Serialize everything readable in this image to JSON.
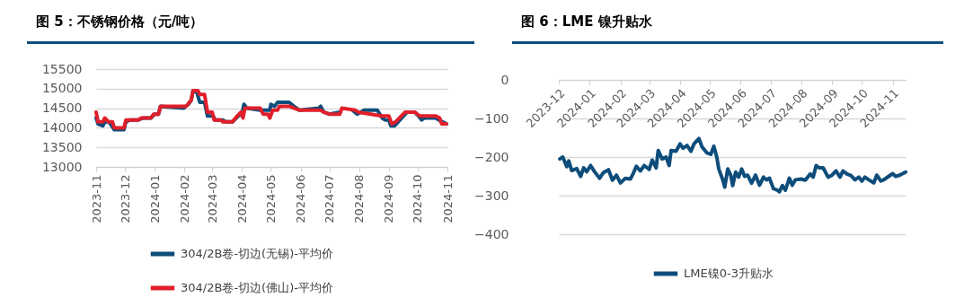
{
  "chart_data": [
    {
      "type": "line",
      "title": "图 5：不锈钢价格（元/吨）",
      "xlim": [
        "2023-11-01",
        "2024-11-01"
      ],
      "xticks": [
        "2023-11",
        "2023-12",
        "2024-01",
        "2024-02",
        "2024-03",
        "2024-04",
        "2024-05",
        "2024-06",
        "2024-07",
        "2024-08",
        "2024-09",
        "2024-10",
        "2024-11"
      ],
      "ylim": [
        13000,
        15500
      ],
      "yticks": [
        13000,
        13500,
        14000,
        14500,
        15000,
        15500
      ],
      "grid": "y",
      "legend": "bottom",
      "line_style": "solid",
      "marker": "none",
      "series": [
        {
          "name": "304/2B卷-切边(无锡)-平均价",
          "color": "#0e4d7b",
          "x": [
            "2023-11-01",
            "2023-11-03",
            "2023-11-08",
            "2023-11-10",
            "2023-11-14",
            "2023-11-16",
            "2023-11-20",
            "2023-11-30",
            "2023-12-02",
            "2023-12-06",
            "2023-12-15",
            "2023-12-20",
            "2023-12-28",
            "2024-01-01",
            "2024-01-05",
            "2024-01-07",
            "2024-01-31",
            "2024-02-05",
            "2024-02-08",
            "2024-02-10",
            "2024-02-14",
            "2024-02-17",
            "2024-02-22",
            "2024-02-25",
            "2024-03-02",
            "2024-03-04",
            "2024-03-12",
            "2024-03-15",
            "2024-03-22",
            "2024-03-28",
            "2024-04-01",
            "2024-04-03",
            "2024-04-06",
            "2024-04-20",
            "2024-04-30",
            "2024-05-01",
            "2024-05-05",
            "2024-05-08",
            "2024-05-20",
            "2024-05-25",
            "2024-05-31",
            "2024-06-20",
            "2024-06-22",
            "2024-06-25",
            "2024-07-01",
            "2024-07-12",
            "2024-07-15",
            "2024-07-25",
            "2024-07-30",
            "2024-08-03",
            "2024-08-06",
            "2024-08-20",
            "2024-08-25",
            "2024-08-28",
            "2024-09-01",
            "2024-09-03",
            "2024-09-07",
            "2024-09-20",
            "2024-09-28",
            "2024-10-02",
            "2024-10-05",
            "2024-10-08",
            "2024-10-20",
            "2024-10-23",
            "2024-10-27",
            "2024-10-31"
          ],
          "values": [
            14250,
            14100,
            14050,
            14150,
            14150,
            14100,
            13950,
            13950,
            14150,
            14200,
            14200,
            14250,
            14250,
            14350,
            14350,
            14550,
            14500,
            14600,
            14700,
            14950,
            14900,
            14650,
            14650,
            14300,
            14300,
            14200,
            14200,
            14150,
            14150,
            14300,
            14350,
            14600,
            14500,
            14450,
            14450,
            14600,
            14550,
            14650,
            14650,
            14550,
            14450,
            14500,
            14550,
            14400,
            14350,
            14400,
            null,
            14450,
            14350,
            14400,
            14450,
            14450,
            14250,
            14200,
            14200,
            14050,
            14050,
            14400,
            14400,
            14300,
            14200,
            14250,
            14250,
            14200,
            14150,
            14100
          ]
        },
        {
          "name": "304/2B卷-切边(佛山)-平均价",
          "color": "#e01f2a",
          "x": [
            "2023-11-01",
            "2023-11-03",
            "2023-11-08",
            "2023-11-10",
            "2023-11-14",
            "2023-11-18",
            "2023-11-20",
            "2023-11-30",
            "2023-12-02",
            "2023-12-15",
            "2023-12-18",
            "2023-12-28",
            "2023-12-31",
            "2024-01-05",
            "2024-01-07",
            "2024-02-03",
            "2024-02-06",
            "2024-02-08",
            "2024-02-10",
            "2024-02-15",
            "2024-02-17",
            "2024-02-22",
            "2024-02-25",
            "2024-03-01",
            "2024-03-03",
            "2024-03-10",
            "2024-03-12",
            "2024-03-22",
            "2024-03-27",
            "2024-03-31",
            "2024-04-02",
            "2024-04-04",
            "2024-04-20",
            "2024-04-23",
            "2024-04-28",
            "2024-04-30",
            "2024-05-03",
            "2024-05-08",
            "2024-05-10",
            "2024-05-20",
            "2024-05-31",
            "2024-06-22",
            "2024-06-25",
            "2024-07-01",
            "2024-07-12",
            "2024-07-14",
            "2024-07-28",
            "2024-07-31",
            "2024-08-25",
            "2024-09-01",
            "2024-09-04",
            "2024-09-08",
            "2024-09-18",
            "2024-09-28",
            "2024-10-03",
            "2024-10-20",
            "2024-10-24",
            "2024-10-26",
            "2024-10-31"
          ],
          "values": [
            14400,
            14150,
            14150,
            14250,
            14150,
            14150,
            14000,
            14000,
            14200,
            14200,
            14250,
            14250,
            14350,
            14350,
            14550,
            14550,
            14650,
            14700,
            14950,
            14950,
            14850,
            14850,
            14400,
            14400,
            14200,
            14200,
            14150,
            14150,
            14300,
            14400,
            14250,
            14500,
            14500,
            14350,
            14350,
            14250,
            14450,
            14450,
            14550,
            14550,
            14450,
            14450,
            14400,
            14350,
            14350,
            14500,
            14450,
            14400,
            14300,
            14300,
            14100,
            14150,
            14400,
            14400,
            14300,
            14300,
            14250,
            14100,
            14100
          ]
        }
      ]
    },
    {
      "type": "line",
      "title": "图 6：LME 镍升贴水",
      "xlim": [
        "2023-12-01",
        "2024-11-14"
      ],
      "xticks": [
        "2023-12",
        "2024-01",
        "2024-02",
        "2024-03",
        "2024-04",
        "2024-05",
        "2024-06",
        "2024-07",
        "2024-08",
        "2024-09",
        "2024-10",
        "2024-11"
      ],
      "ylim": [
        -400,
        0
      ],
      "yticks": [
        -400,
        -300,
        -200,
        -100,
        0
      ],
      "grid": "y",
      "legend": "bottom",
      "line_style": "solid",
      "marker": "none",
      "series": [
        {
          "name": "LME镍0-3升贴水",
          "color": "#0e4d7b",
          "x": [
            "2023-12-02",
            "2023-12-05",
            "2023-12-09",
            "2023-12-11",
            "2023-12-14",
            "2023-12-19",
            "2023-12-23",
            "2023-12-26",
            "2023-12-29",
            "2024-01-02",
            "2024-01-06",
            "2024-01-11",
            "2024-01-15",
            "2024-01-20",
            "2024-01-24",
            "2024-01-28",
            "2024-02-01",
            "2024-02-06",
            "2024-02-11",
            "2024-02-14",
            "2024-02-17",
            "2024-02-21",
            "2024-02-25",
            "2024-03-01",
            "2024-03-04",
            "2024-03-08",
            "2024-03-10",
            "2024-03-14",
            "2024-03-18",
            "2024-03-21",
            "2024-03-23",
            "2024-03-28",
            "2024-04-01",
            "2024-04-04",
            "2024-04-08",
            "2024-04-12",
            "2024-04-15",
            "2024-04-20",
            "2024-04-23",
            "2024-04-28",
            "2024-05-02",
            "2024-05-05",
            "2024-05-08",
            "2024-05-10",
            "2024-05-14",
            "2024-05-16",
            "2024-05-19",
            "2024-05-22",
            "2024-05-24",
            "2024-05-27",
            "2024-05-30",
            "2024-06-02",
            "2024-06-05",
            "2024-06-08",
            "2024-06-12",
            "2024-06-16",
            "2024-06-20",
            "2024-06-24",
            "2024-06-27",
            "2024-06-30",
            "2024-07-04",
            "2024-07-08",
            "2024-07-10",
            "2024-07-13",
            "2024-07-16",
            "2024-07-20",
            "2024-07-23",
            "2024-07-26",
            "2024-08-01",
            "2024-08-05",
            "2024-08-10",
            "2024-08-13",
            "2024-08-16",
            "2024-08-19",
            "2024-08-23",
            "2024-08-28",
            "2024-09-01",
            "2024-09-05",
            "2024-09-09",
            "2024-09-12",
            "2024-09-16",
            "2024-09-20",
            "2024-09-24",
            "2024-09-28",
            "2024-10-01",
            "2024-10-04",
            "2024-10-08",
            "2024-10-13",
            "2024-10-16",
            "2024-10-20",
            "2024-10-23",
            "2024-10-28",
            "2024-11-01",
            "2024-11-04",
            "2024-11-08",
            "2024-11-14"
          ],
          "values": [
            -205,
            -200,
            -225,
            -210,
            -235,
            -230,
            -250,
            -228,
            -238,
            -222,
            -238,
            -255,
            -240,
            -233,
            -260,
            -247,
            -267,
            -255,
            -257,
            -242,
            -224,
            -236,
            -222,
            -232,
            -208,
            -228,
            -183,
            -205,
            -200,
            -222,
            -183,
            -185,
            -166,
            -177,
            -170,
            -185,
            -166,
            -152,
            -173,
            -189,
            -193,
            -172,
            -200,
            -231,
            -259,
            -278,
            -231,
            -247,
            -274,
            -239,
            -252,
            -231,
            -250,
            -247,
            -268,
            -247,
            -273,
            -252,
            -259,
            -255,
            -282,
            -286,
            -290,
            -274,
            -286,
            -255,
            -273,
            -259,
            -257,
            -260,
            -244,
            -252,
            -222,
            -228,
            -228,
            -252,
            -247,
            -236,
            -252,
            -236,
            -244,
            -248,
            -259,
            -252,
            -262,
            -252,
            -259,
            -267,
            -247,
            -262,
            -259,
            -250,
            -243,
            -250,
            -247,
            -239
          ]
        }
      ]
    }
  ]
}
